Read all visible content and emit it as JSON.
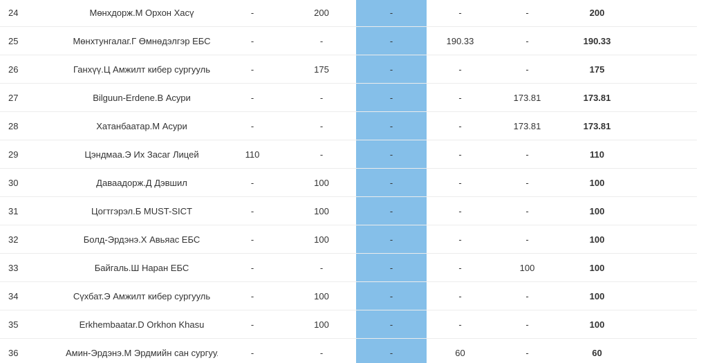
{
  "rows": [
    {
      "rank": "24",
      "name": "Мөнхдорж.М Орхон Хасү",
      "c1": "-",
      "c2": "200",
      "c3": "-",
      "c4": "-",
      "c5": "-",
      "total": "200"
    },
    {
      "rank": "25",
      "name": "Мөнхтунгалаг.Г Өмнөдэлгэр ЕБС",
      "c1": "-",
      "c2": "-",
      "c3": "-",
      "c4": "190.33",
      "c5": "-",
      "total": "190.33"
    },
    {
      "rank": "26",
      "name": "Ганхүү.Ц Амжилт кибер сургууль",
      "c1": "-",
      "c2": "175",
      "c3": "-",
      "c4": "-",
      "c5": "-",
      "total": "175"
    },
    {
      "rank": "27",
      "name": "Bilguun-Erdene.B Асури",
      "c1": "-",
      "c2": "-",
      "c3": "-",
      "c4": "-",
      "c5": "173.81",
      "total": "173.81"
    },
    {
      "rank": "28",
      "name": "Хатанбаатар.М Асури",
      "c1": "-",
      "c2": "-",
      "c3": "-",
      "c4": "-",
      "c5": "173.81",
      "total": "173.81"
    },
    {
      "rank": "29",
      "name": "Цэндмаа.Э Их Засаг Лицей",
      "c1": "110",
      "c2": "-",
      "c3": "-",
      "c4": "-",
      "c5": "-",
      "total": "110"
    },
    {
      "rank": "30",
      "name": "Даваадорж.Д Дэвшил",
      "c1": "-",
      "c2": "100",
      "c3": "-",
      "c4": "-",
      "c5": "-",
      "total": "100"
    },
    {
      "rank": "31",
      "name": "Цогтгэрэл.Б MUST-SICT",
      "c1": "-",
      "c2": "100",
      "c3": "-",
      "c4": "-",
      "c5": "-",
      "total": "100"
    },
    {
      "rank": "32",
      "name": "Болд-Эрдэнэ.Х Авьяас ЕБС",
      "c1": "-",
      "c2": "100",
      "c3": "-",
      "c4": "-",
      "c5": "-",
      "total": "100"
    },
    {
      "rank": "33",
      "name": "Байгаль.Ш Наран ЕБС",
      "c1": "-",
      "c2": "-",
      "c3": "-",
      "c4": "-",
      "c5": "100",
      "total": "100"
    },
    {
      "rank": "34",
      "name": "Сүхбат.Э Амжилт кибер сургууль",
      "c1": "-",
      "c2": "100",
      "c3": "-",
      "c4": "-",
      "c5": "-",
      "total": "100"
    },
    {
      "rank": "35",
      "name": "Erkhembaatar.D Orkhon Khasu",
      "c1": "-",
      "c2": "100",
      "c3": "-",
      "c4": "-",
      "c5": "-",
      "total": "100"
    },
    {
      "rank": "36",
      "name": "Амин-Эрдэнэ.М Эрдмийн сан сургууль",
      "c1": "-",
      "c2": "-",
      "c3": "-",
      "c4": "60",
      "c5": "-",
      "total": "60"
    }
  ],
  "colors": {
    "highlight_column": "#85bfe9",
    "row_border": "#ececec",
    "text": "#333333"
  }
}
